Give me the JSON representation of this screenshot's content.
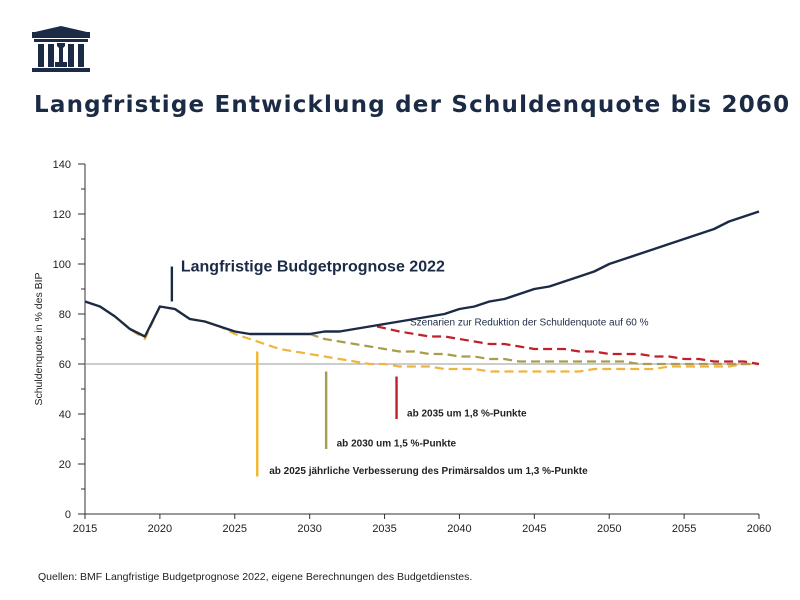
{
  "title": "Langfristige Entwicklung der Schuldenquote bis 2060",
  "source": "Quellen: BMF Langfristige Budgetprognose 2022, eigene Berechnungen des Budgetdienstes.",
  "colors": {
    "navy": "#1c2b45",
    "red": "#c0202a",
    "olive": "#a89c4e",
    "gold": "#f0b540",
    "yellow": "#f3b42e"
  },
  "chart_data": {
    "type": "line",
    "ylabel": "Schuldenquote  in % des BIP",
    "xlabel": "",
    "xlim": [
      2015,
      2060
    ],
    "ylim": [
      0,
      140
    ],
    "xticks": [
      2015,
      2020,
      2025,
      2030,
      2035,
      2040,
      2045,
      2050,
      2055,
      2060
    ],
    "yticks": [
      0,
      20,
      40,
      60,
      80,
      100,
      120,
      140
    ],
    "reference_line": 60,
    "series": [
      {
        "id": "budget",
        "name": "Langfristige Budgetprognose 2022",
        "color": "#1c2b45",
        "dashed": false,
        "points": [
          [
            2015,
            85
          ],
          [
            2016,
            83
          ],
          [
            2017,
            79
          ],
          [
            2018,
            74
          ],
          [
            2019,
            71
          ],
          [
            2020,
            83
          ],
          [
            2021,
            82
          ],
          [
            2022,
            78
          ],
          [
            2023,
            77
          ],
          [
            2024,
            75
          ],
          [
            2025,
            73
          ],
          [
            2026,
            72
          ],
          [
            2027,
            72
          ],
          [
            2028,
            72
          ],
          [
            2029,
            72
          ],
          [
            2030,
            72
          ],
          [
            2031,
            73
          ],
          [
            2032,
            73
          ],
          [
            2033,
            74
          ],
          [
            2034,
            75
          ],
          [
            2035,
            76
          ],
          [
            2036,
            77
          ],
          [
            2037,
            78
          ],
          [
            2038,
            79
          ],
          [
            2039,
            80
          ],
          [
            2040,
            82
          ],
          [
            2041,
            83
          ],
          [
            2042,
            85
          ],
          [
            2043,
            86
          ],
          [
            2044,
            88
          ],
          [
            2045,
            90
          ],
          [
            2046,
            91
          ],
          [
            2047,
            93
          ],
          [
            2048,
            95
          ],
          [
            2049,
            97
          ],
          [
            2050,
            100
          ],
          [
            2051,
            102
          ],
          [
            2052,
            104
          ],
          [
            2053,
            106
          ],
          [
            2054,
            108
          ],
          [
            2055,
            110
          ],
          [
            2056,
            112
          ],
          [
            2057,
            114
          ],
          [
            2058,
            117
          ],
          [
            2059,
            119
          ],
          [
            2060,
            121
          ]
        ]
      },
      {
        "id": "s2035",
        "name": "ab 2035 um 1,8 %-Punkte",
        "color": "#c0202a",
        "dashed": true,
        "points": [
          [
            2034.5,
            75
          ],
          [
            2036,
            73
          ],
          [
            2037,
            72
          ],
          [
            2038,
            71
          ],
          [
            2039,
            71
          ],
          [
            2040,
            70
          ],
          [
            2041,
            69
          ],
          [
            2042,
            68
          ],
          [
            2043,
            68
          ],
          [
            2044,
            67
          ],
          [
            2045,
            66
          ],
          [
            2046,
            66
          ],
          [
            2047,
            66
          ],
          [
            2048,
            65
          ],
          [
            2049,
            65
          ],
          [
            2050,
            64
          ],
          [
            2051,
            64
          ],
          [
            2052,
            64
          ],
          [
            2053,
            63
          ],
          [
            2054,
            63
          ],
          [
            2055,
            62
          ],
          [
            2056,
            62
          ],
          [
            2057,
            61
          ],
          [
            2058,
            61
          ],
          [
            2059,
            61
          ],
          [
            2060,
            60
          ]
        ]
      },
      {
        "id": "s2030",
        "name": "ab 2030 um 1,5 %-Punkte",
        "color": "#a89c4e",
        "dashed": true,
        "points": [
          [
            2030,
            72
          ],
          [
            2031,
            70
          ],
          [
            2032,
            69
          ],
          [
            2033,
            68
          ],
          [
            2034,
            67
          ],
          [
            2035,
            66
          ],
          [
            2036,
            65
          ],
          [
            2037,
            65
          ],
          [
            2038,
            64
          ],
          [
            2039,
            64
          ],
          [
            2040,
            63
          ],
          [
            2041,
            63
          ],
          [
            2042,
            62
          ],
          [
            2043,
            62
          ],
          [
            2044,
            61
          ],
          [
            2045,
            61
          ],
          [
            2046,
            61
          ],
          [
            2047,
            61
          ],
          [
            2048,
            61
          ],
          [
            2049,
            61
          ],
          [
            2050,
            61
          ],
          [
            2051,
            61
          ],
          [
            2052,
            60
          ],
          [
            2053,
            60
          ],
          [
            2054,
            60
          ],
          [
            2055,
            60
          ],
          [
            2056,
            60
          ],
          [
            2057,
            60
          ],
          [
            2058,
            60
          ],
          [
            2059,
            60
          ],
          [
            2060,
            60
          ]
        ]
      },
      {
        "id": "s2025",
        "name": "ab 2025 jährliche Verbesserung des Primärsaldos um 1,3 %-Punkte",
        "color": "#f0b540",
        "dashed": true,
        "points": [
          [
            2015,
            85
          ],
          [
            2016,
            83
          ],
          [
            2017,
            79
          ],
          [
            2018,
            74
          ],
          [
            2019,
            70
          ],
          [
            2020,
            83
          ],
          [
            2021,
            82
          ],
          [
            2022,
            78
          ],
          [
            2023,
            77
          ],
          [
            2024,
            75
          ],
          [
            2025,
            72
          ],
          [
            2026,
            70
          ],
          [
            2027,
            68
          ],
          [
            2028,
            66
          ],
          [
            2029,
            65
          ],
          [
            2030,
            64
          ],
          [
            2031,
            63
          ],
          [
            2032,
            62
          ],
          [
            2033,
            61
          ],
          [
            2034,
            60
          ],
          [
            2035,
            60
          ],
          [
            2036,
            59
          ],
          [
            2037,
            59
          ],
          [
            2038,
            59
          ],
          [
            2039,
            58
          ],
          [
            2040,
            58
          ],
          [
            2041,
            58
          ],
          [
            2042,
            57
          ],
          [
            2043,
            57
          ],
          [
            2044,
            57
          ],
          [
            2045,
            57
          ],
          [
            2046,
            57
          ],
          [
            2047,
            57
          ],
          [
            2048,
            57
          ],
          [
            2049,
            58
          ],
          [
            2050,
            58
          ],
          [
            2051,
            58
          ],
          [
            2052,
            58
          ],
          [
            2053,
            58
          ],
          [
            2054,
            59
          ],
          [
            2055,
            59
          ],
          [
            2056,
            59
          ],
          [
            2057,
            59
          ],
          [
            2058,
            59
          ],
          [
            2059,
            60
          ],
          [
            2060,
            60
          ]
        ]
      }
    ],
    "annotations": [
      {
        "id": "budget",
        "text": "Langfristige Budgetprognose 2022",
        "marker_x": 2020.8,
        "y_top": 99,
        "y_bottom": 85,
        "text_x": 2021.4,
        "text_y": 97,
        "bold": true,
        "size": 16,
        "color": "#1c2b45"
      },
      {
        "id": "scen",
        "text": "Szenarien zur Reduktion der Schuldenquote auf 60 %",
        "marker_x": null,
        "text_x": 2036.7,
        "text_y": 75.5,
        "bold": false,
        "size": 10,
        "color": "#1c2b45"
      },
      {
        "id": "s2035",
        "text": "ab 2035 um 1,8 %-Punkte",
        "marker_x": 2035.8,
        "y_top": 55,
        "y_bottom": 38,
        "text_x": 2036.5,
        "text_y": 39,
        "bold": true,
        "size": 10,
        "color": "#c0202a"
      },
      {
        "id": "s2030",
        "text": "ab 2030 um 1,5 %-Punkte",
        "marker_x": 2031.1,
        "y_top": 57,
        "y_bottom": 26,
        "text_x": 2031.8,
        "text_y": 27,
        "bold": true,
        "size": 10,
        "color": "#a89c4e"
      },
      {
        "id": "s2025",
        "text": "ab 2025 jährliche Verbesserung des Primärsaldos um 1,3 %-Punkte",
        "marker_x": 2026.5,
        "y_top": 65,
        "y_bottom": 15,
        "text_x": 2027.3,
        "text_y": 16,
        "bold": true,
        "size": 10,
        "color": "#f3b42e"
      }
    ]
  }
}
